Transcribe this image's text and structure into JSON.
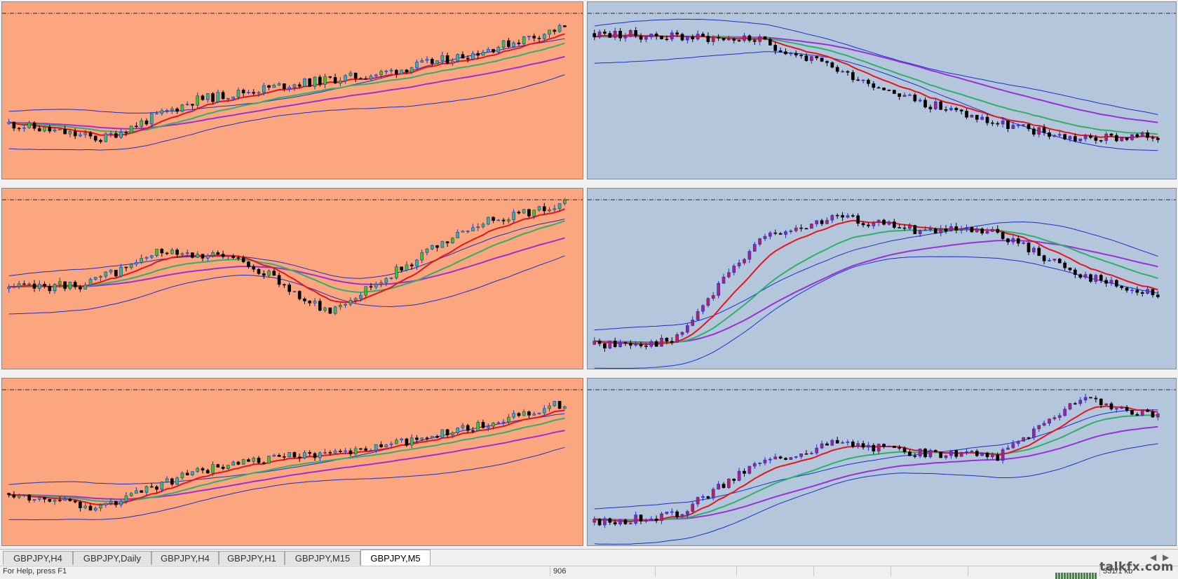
{
  "colors": {
    "orange_bg": "#fba67f",
    "blue_bg": "#b4c6dc",
    "bull": "#1a2fd0",
    "bull_fill": "#3fbf3f",
    "bear": "#000000",
    "bear_fill_blue": "#b0226a",
    "ema_fast": "#e8141d",
    "ema_mid": "#2fb06a",
    "ema_slow": "#9a30d8",
    "bands": "#1a2fd0",
    "level_line": "#2a2a2a"
  },
  "charts": [
    {
      "id": "c1",
      "bg": "orange",
      "body": "green",
      "trend": [
        0.3,
        0.2,
        0.45,
        0.55,
        0.62,
        0.75,
        0.92
      ],
      "seed": 11
    },
    {
      "id": "c2",
      "bg": "blue",
      "body": "magenta",
      "trend": [
        0.88,
        0.86,
        0.84,
        0.65,
        0.45,
        0.3,
        0.2,
        0.22
      ],
      "seed": 23
    },
    {
      "id": "c3",
      "bg": "orange",
      "body": "green",
      "trend": [
        0.45,
        0.48,
        0.7,
        0.62,
        0.3,
        0.6,
        0.88,
        0.98
      ],
      "seed": 37
    },
    {
      "id": "c4",
      "bg": "blue",
      "body": "magenta",
      "trend": [
        0.1,
        0.12,
        0.75,
        0.9,
        0.82,
        0.8,
        0.55,
        0.4
      ],
      "seed": 41
    },
    {
      "id": "c5",
      "bg": "orange",
      "body": "green",
      "trend": [
        0.3,
        0.2,
        0.45,
        0.55,
        0.62,
        0.75,
        0.92
      ],
      "seed": 53
    },
    {
      "id": "c6",
      "bg": "blue",
      "body": "magenta",
      "trend": [
        0.1,
        0.15,
        0.5,
        0.65,
        0.58,
        0.55,
        0.95,
        0.82
      ],
      "seed": 67
    }
  ],
  "tabs": [
    {
      "label": "GBPJPY,H4",
      "active": false
    },
    {
      "label": "GBPJPY,Daily",
      "active": false
    },
    {
      "label": "GBPJPY,H4",
      "active": false
    },
    {
      "label": "GBPJPY,H1",
      "active": false
    },
    {
      "label": "GBPJPY,M15",
      "active": false
    },
    {
      "label": "GBPJPY,M5",
      "active": true
    }
  ],
  "status": {
    "left": "For Help, press F1",
    "mid": "906",
    "traffic": "331/1 kb"
  },
  "watermark": "talkfx.com"
}
